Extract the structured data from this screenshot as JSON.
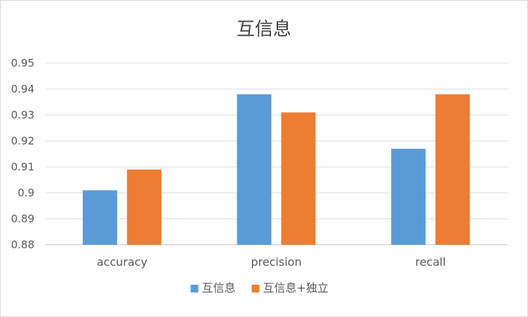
{
  "chart_data": {
    "type": "bar",
    "title": "互信息",
    "xlabel": "",
    "ylabel": "",
    "categories": [
      "accuracy",
      "precision",
      "recall"
    ],
    "series": [
      {
        "name": "互信息",
        "color": "#5B9BD5",
        "values": [
          0.901,
          0.938,
          0.917
        ]
      },
      {
        "name": "互信息+独立",
        "color": "#ED7D31",
        "values": [
          0.909,
          0.931,
          0.938
        ]
      }
    ],
    "ylim": [
      0.88,
      0.95
    ],
    "yticks": [
      "0.88",
      "0.89",
      "0.9",
      "0.91",
      "0.92",
      "0.93",
      "0.94",
      "0.95"
    ],
    "grid": true,
    "legend": "bottom-center"
  }
}
